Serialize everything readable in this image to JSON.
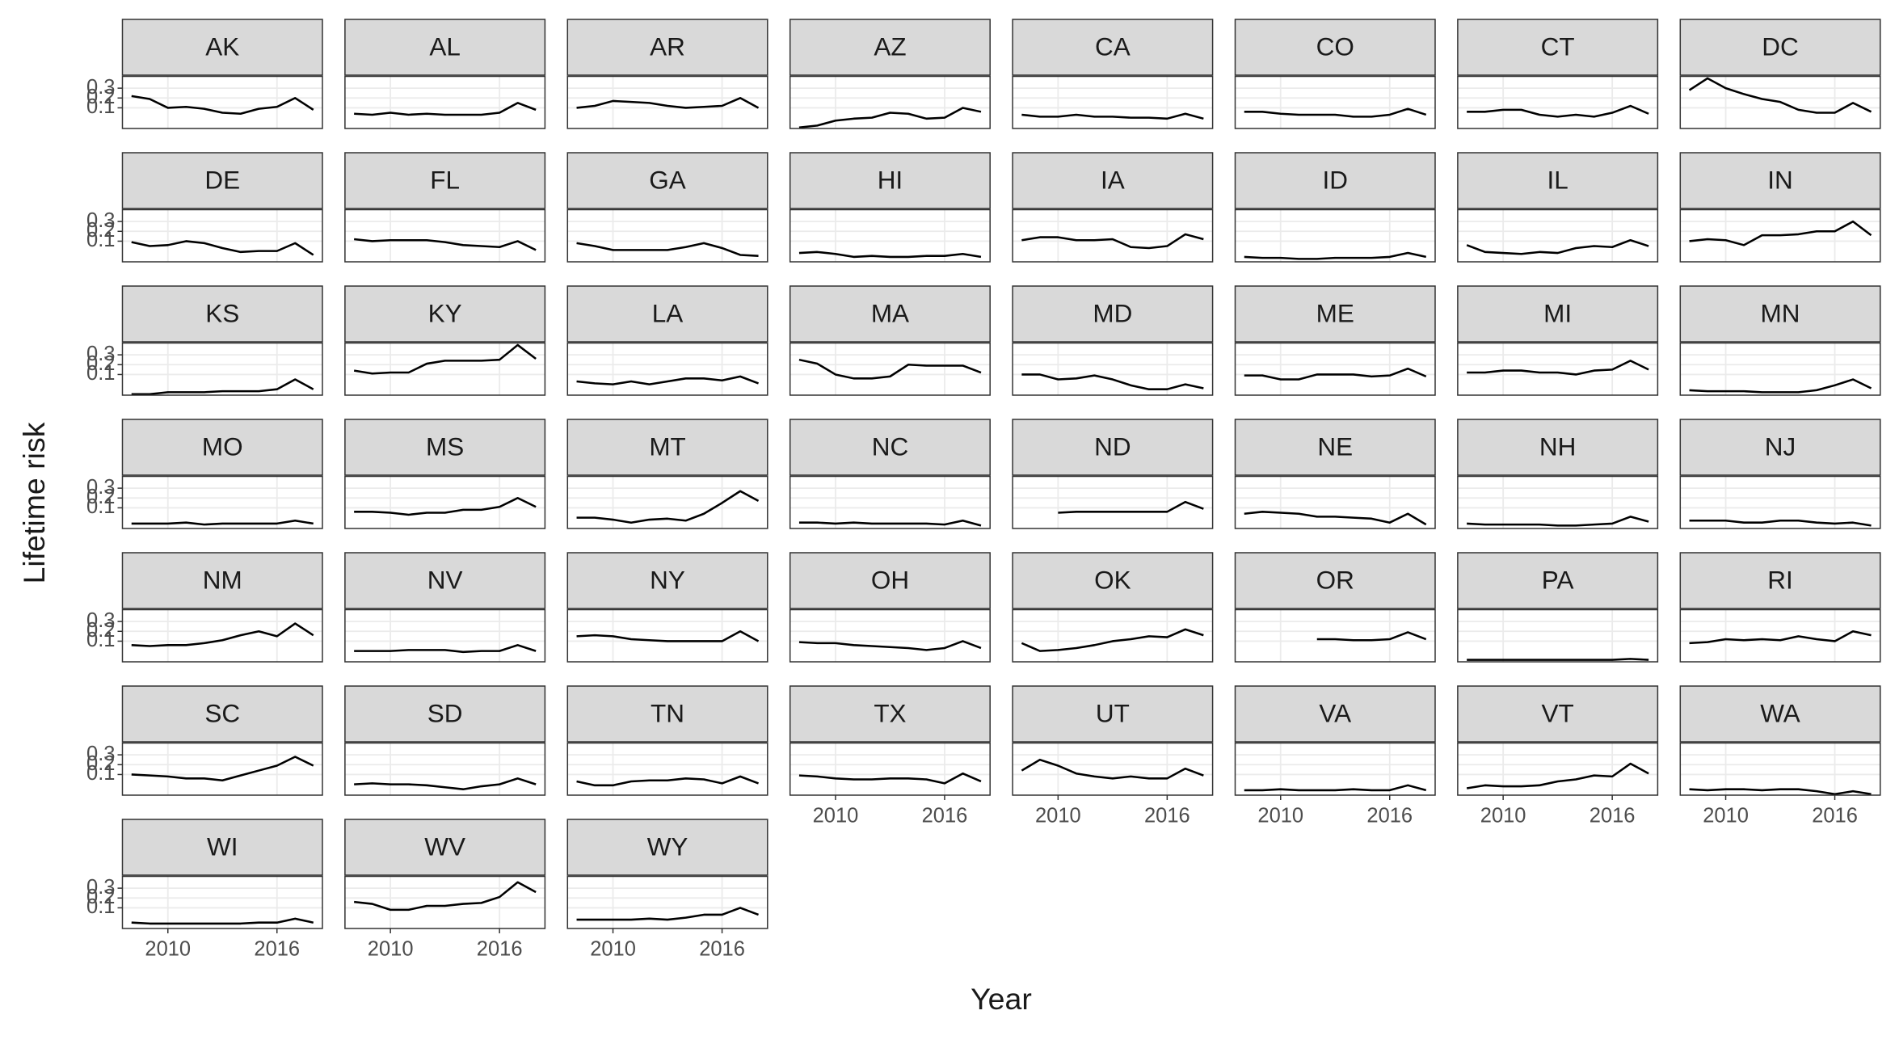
{
  "chart_data": {
    "type": "line",
    "xlabel": "Year",
    "ylabel": "Lifetime risk",
    "color": "#000000",
    "grid": true,
    "x": [
      2008,
      2009,
      2010,
      2011,
      2012,
      2013,
      2014,
      2015,
      2016,
      2017,
      2018
    ],
    "xlim": [
      2007.5,
      2018.5
    ],
    "xticks": [
      2010,
      2016
    ],
    "ylim": [
      -0.11,
      0.42
    ],
    "yticks": [
      0.1,
      0.2,
      0.3
    ],
    "series": [
      {
        "name": "AK",
        "values": [
          0.22,
          0.19,
          0.1,
          0.11,
          0.09,
          0.05,
          0.04,
          0.09,
          0.11,
          0.2,
          0.08
        ]
      },
      {
        "name": "AL",
        "values": [
          0.04,
          0.03,
          0.05,
          0.03,
          0.04,
          0.03,
          0.03,
          0.03,
          0.05,
          0.15,
          0.08
        ]
      },
      {
        "name": "AR",
        "values": [
          0.1,
          0.12,
          0.17,
          0.16,
          0.15,
          0.12,
          0.1,
          0.11,
          0.12,
          0.2,
          0.1
        ]
      },
      {
        "name": "AZ",
        "values": [
          -0.1,
          -0.08,
          -0.03,
          -0.01,
          0.0,
          0.05,
          0.04,
          -0.01,
          0.0,
          0.1,
          0.06
        ]
      },
      {
        "name": "CA",
        "values": [
          0.03,
          0.01,
          0.01,
          0.03,
          0.01,
          0.01,
          0.0,
          0.0,
          -0.01,
          0.04,
          -0.01
        ]
      },
      {
        "name": "CO",
        "values": [
          0.06,
          0.06,
          0.04,
          0.03,
          0.03,
          0.03,
          0.01,
          0.01,
          0.03,
          0.09,
          0.03
        ]
      },
      {
        "name": "CT",
        "values": [
          0.06,
          0.06,
          0.08,
          0.08,
          0.03,
          0.01,
          0.03,
          0.01,
          0.05,
          0.12,
          0.04
        ]
      },
      {
        "name": "DC",
        "values": [
          0.28,
          0.4,
          0.3,
          0.24,
          0.19,
          0.16,
          0.08,
          0.05,
          0.05,
          0.15,
          0.06
        ]
      },
      {
        "name": "DE",
        "values": [
          0.09,
          0.05,
          0.06,
          0.1,
          0.08,
          0.03,
          -0.01,
          0.0,
          0.0,
          0.08,
          -0.04
        ]
      },
      {
        "name": "FL",
        "values": [
          0.12,
          0.1,
          0.11,
          0.11,
          0.11,
          0.09,
          0.06,
          0.05,
          0.04,
          0.1,
          0.01
        ]
      },
      {
        "name": "GA",
        "values": [
          0.08,
          0.05,
          0.01,
          0.01,
          0.01,
          0.01,
          0.04,
          0.08,
          0.03,
          -0.04,
          -0.05
        ]
      },
      {
        "name": "HI",
        "values": [
          -0.02,
          -0.01,
          -0.03,
          -0.06,
          -0.05,
          -0.06,
          -0.06,
          -0.05,
          -0.05,
          -0.03,
          -0.06
        ]
      },
      {
        "name": "IA",
        "values": [
          0.11,
          0.14,
          0.14,
          0.11,
          0.11,
          0.12,
          0.04,
          0.03,
          0.05,
          0.17,
          0.12
        ]
      },
      {
        "name": "ID",
        "values": [
          -0.06,
          -0.07,
          -0.07,
          -0.08,
          -0.08,
          -0.07,
          -0.07,
          -0.07,
          -0.06,
          -0.02,
          -0.06
        ]
      },
      {
        "name": "IL",
        "values": [
          0.06,
          -0.01,
          -0.02,
          -0.03,
          -0.01,
          -0.02,
          0.03,
          0.05,
          0.04,
          0.11,
          0.05
        ]
      },
      {
        "name": "IN",
        "values": [
          0.1,
          0.12,
          0.11,
          0.06,
          0.16,
          0.16,
          0.17,
          0.2,
          0.2,
          0.3,
          0.16
        ]
      },
      {
        "name": "KS",
        "values": [
          -0.1,
          -0.1,
          -0.08,
          -0.08,
          -0.08,
          -0.07,
          -0.07,
          -0.07,
          -0.05,
          0.05,
          -0.05
        ]
      },
      {
        "name": "KY",
        "values": [
          0.14,
          0.11,
          0.12,
          0.12,
          0.21,
          0.24,
          0.24,
          0.24,
          0.25,
          0.4,
          0.26
        ]
      },
      {
        "name": "LA",
        "values": [
          0.03,
          0.01,
          0.0,
          0.03,
          0.0,
          0.03,
          0.06,
          0.06,
          0.04,
          0.08,
          0.01
        ]
      },
      {
        "name": "MA",
        "values": [
          0.25,
          0.21,
          0.1,
          0.06,
          0.06,
          0.08,
          0.2,
          0.19,
          0.19,
          0.19,
          0.12
        ]
      },
      {
        "name": "MD",
        "values": [
          0.1,
          0.1,
          0.05,
          0.06,
          0.09,
          0.05,
          -0.01,
          -0.05,
          -0.05,
          0.0,
          -0.04
        ]
      },
      {
        "name": "ME",
        "values": [
          0.09,
          0.09,
          0.05,
          0.05,
          0.1,
          0.1,
          0.1,
          0.08,
          0.09,
          0.16,
          0.08
        ]
      },
      {
        "name": "MI",
        "values": [
          0.12,
          0.12,
          0.14,
          0.14,
          0.12,
          0.12,
          0.1,
          0.14,
          0.15,
          0.24,
          0.15
        ]
      },
      {
        "name": "MN",
        "values": [
          -0.06,
          -0.07,
          -0.07,
          -0.07,
          -0.08,
          -0.08,
          -0.08,
          -0.06,
          -0.01,
          0.05,
          -0.04
        ]
      },
      {
        "name": "MO",
        "values": [
          -0.06,
          -0.06,
          -0.06,
          -0.05,
          -0.07,
          -0.06,
          -0.06,
          -0.06,
          -0.06,
          -0.03,
          -0.06
        ]
      },
      {
        "name": "MS",
        "values": [
          0.06,
          0.06,
          0.05,
          0.03,
          0.05,
          0.05,
          0.08,
          0.08,
          0.11,
          0.2,
          0.11
        ]
      },
      {
        "name": "MT",
        "values": [
          0.0,
          0.0,
          -0.02,
          -0.05,
          -0.02,
          -0.01,
          -0.03,
          0.04,
          0.15,
          0.27,
          0.17
        ]
      },
      {
        "name": "NC",
        "values": [
          -0.05,
          -0.05,
          -0.06,
          -0.05,
          -0.06,
          -0.06,
          -0.06,
          -0.06,
          -0.07,
          -0.03,
          -0.08
        ]
      },
      {
        "name": "ND",
        "values": [
          null,
          null,
          0.05,
          0.06,
          0.06,
          0.06,
          0.06,
          0.06,
          0.06,
          0.16,
          0.09
        ]
      },
      {
        "name": "NE",
        "values": [
          0.04,
          0.06,
          0.05,
          0.04,
          0.01,
          0.01,
          0.0,
          -0.01,
          -0.05,
          0.04,
          -0.07
        ]
      },
      {
        "name": "NH",
        "values": [
          -0.06,
          -0.07,
          -0.07,
          -0.07,
          -0.07,
          -0.08,
          -0.08,
          -0.07,
          -0.06,
          0.01,
          -0.04
        ]
      },
      {
        "name": "NJ",
        "values": [
          -0.03,
          -0.03,
          -0.03,
          -0.05,
          -0.05,
          -0.03,
          -0.03,
          -0.05,
          -0.06,
          -0.05,
          -0.08
        ]
      },
      {
        "name": "NM",
        "values": [
          0.06,
          0.05,
          0.06,
          0.06,
          0.08,
          0.11,
          0.16,
          0.2,
          0.15,
          0.28,
          0.16
        ]
      },
      {
        "name": "NV",
        "values": [
          0.0,
          0.0,
          0.0,
          0.01,
          0.01,
          0.01,
          -0.01,
          0.0,
          0.0,
          0.06,
          0.0
        ]
      },
      {
        "name": "NY",
        "values": [
          0.15,
          0.16,
          0.15,
          0.12,
          0.11,
          0.1,
          0.1,
          0.1,
          0.1,
          0.2,
          0.1
        ]
      },
      {
        "name": "OH",
        "values": [
          0.09,
          0.08,
          0.08,
          0.06,
          0.05,
          0.04,
          0.03,
          0.01,
          0.03,
          0.1,
          0.03
        ]
      },
      {
        "name": "OK",
        "values": [
          0.08,
          0.0,
          0.01,
          0.03,
          0.06,
          0.1,
          0.12,
          0.15,
          0.14,
          0.22,
          0.16
        ]
      },
      {
        "name": "OR",
        "values": [
          null,
          null,
          null,
          null,
          0.12,
          0.12,
          0.11,
          0.11,
          0.12,
          0.19,
          0.12
        ]
      },
      {
        "name": "PA",
        "values": [
          -0.09,
          -0.09,
          -0.09,
          -0.09,
          -0.09,
          -0.09,
          -0.09,
          -0.09,
          -0.09,
          -0.08,
          -0.09
        ]
      },
      {
        "name": "RI",
        "values": [
          0.08,
          0.09,
          0.12,
          0.11,
          0.12,
          0.11,
          0.15,
          0.12,
          0.1,
          0.2,
          0.16
        ]
      },
      {
        "name": "SC",
        "values": [
          0.1,
          0.09,
          0.08,
          0.06,
          0.06,
          0.04,
          0.09,
          0.14,
          0.19,
          0.28,
          0.19
        ]
      },
      {
        "name": "SD",
        "values": [
          0.0,
          0.01,
          0.0,
          0.0,
          -0.01,
          -0.03,
          -0.05,
          -0.02,
          0.0,
          0.06,
          0.0
        ]
      },
      {
        "name": "TN",
        "values": [
          0.03,
          -0.01,
          -0.01,
          0.03,
          0.04,
          0.04,
          0.06,
          0.05,
          0.01,
          0.08,
          0.01
        ]
      },
      {
        "name": "TX",
        "values": [
          0.09,
          0.08,
          0.06,
          0.05,
          0.05,
          0.06,
          0.06,
          0.05,
          0.01,
          0.11,
          0.03
        ]
      },
      {
        "name": "UT",
        "values": [
          0.14,
          0.25,
          0.19,
          0.11,
          0.08,
          0.06,
          0.08,
          0.06,
          0.06,
          0.16,
          0.09
        ]
      },
      {
        "name": "VA",
        "values": [
          -0.06,
          -0.06,
          -0.05,
          -0.06,
          -0.06,
          -0.06,
          -0.05,
          -0.06,
          -0.06,
          -0.01,
          -0.06
        ]
      },
      {
        "name": "VT",
        "values": [
          -0.04,
          -0.01,
          -0.02,
          -0.02,
          -0.01,
          0.03,
          0.05,
          0.09,
          0.08,
          0.21,
          0.11
        ]
      },
      {
        "name": "WA",
        "values": [
          -0.05,
          -0.06,
          -0.05,
          -0.05,
          -0.06,
          -0.05,
          -0.05,
          -0.07,
          -0.1,
          -0.07,
          -0.1
        ]
      },
      {
        "name": "WI",
        "values": [
          -0.05,
          -0.06,
          -0.06,
          -0.06,
          -0.06,
          -0.06,
          -0.06,
          -0.05,
          -0.05,
          -0.01,
          -0.05
        ]
      },
      {
        "name": "WV",
        "values": [
          0.16,
          0.14,
          0.08,
          0.08,
          0.12,
          0.12,
          0.14,
          0.15,
          0.21,
          0.36,
          0.26
        ]
      },
      {
        "name": "WY",
        "values": [
          -0.02,
          -0.02,
          -0.02,
          -0.02,
          -0.01,
          -0.02,
          0.0,
          0.03,
          0.03,
          0.1,
          0.03
        ]
      }
    ]
  }
}
